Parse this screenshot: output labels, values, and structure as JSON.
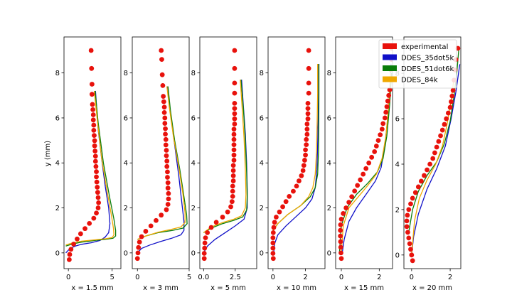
{
  "figure": {
    "ylabel": "y (mm)"
  },
  "legend": {
    "entries": [
      {
        "label": "experimental",
        "color": "#e8120c"
      },
      {
        "label": "DDES_35dot5k",
        "color": "#1010c8"
      },
      {
        "label": "DDES_51dot6k",
        "color": "#0a7d0a"
      },
      {
        "label": "DDES_84k",
        "color": "#f0a800"
      }
    ]
  },
  "chart_data": [
    {
      "type": "line",
      "xlabel": "x = 1.5 mm",
      "ylabel": "y (mm)",
      "xlim": [
        -0.5,
        6
      ],
      "ylim": [
        -0.7,
        9.6
      ],
      "xticks": [
        0,
        5
      ],
      "yticks": [
        0,
        2,
        4,
        6,
        8
      ],
      "experimental": {
        "x": [
          0.1,
          0.15,
          0.3,
          0.6,
          1.0,
          1.4,
          1.9,
          2.4,
          2.9,
          3.2,
          3.4,
          3.45,
          3.4,
          3.35,
          3.3,
          3.25,
          3.2,
          3.2,
          3.15,
          3.1,
          3.1,
          3.05,
          3.0,
          3.0,
          2.95,
          2.9,
          2.9,
          2.85,
          2.85,
          2.8,
          2.75,
          2.7,
          2.7,
          2.65,
          2.6
        ],
        "y": [
          -0.3,
          -0.07,
          0.16,
          0.39,
          0.62,
          0.85,
          1.08,
          1.31,
          1.54,
          1.77,
          2.0,
          2.23,
          2.46,
          2.69,
          2.92,
          3.15,
          3.38,
          3.61,
          3.84,
          4.07,
          4.3,
          4.53,
          4.76,
          4.99,
          5.22,
          5.45,
          5.68,
          5.91,
          6.14,
          6.37,
          6.6,
          7.05,
          7.5,
          8.2,
          9.0
        ]
      },
      "series": [
        {
          "name": "DDES_35dot5k",
          "x": [
            -0.3,
            0.2,
            0.8,
            1.5,
            2.6,
            3.6,
            4.2,
            4.6,
            4.75,
            4.6,
            4.2,
            3.8,
            3.4,
            3.1
          ],
          "y": [
            0.0,
            0.2,
            0.3,
            0.38,
            0.45,
            0.55,
            0.7,
            0.9,
            1.3,
            2.0,
            3.0,
            4.2,
            5.5,
            7.2
          ]
        },
        {
          "name": "DDES_51dot6k",
          "x": [
            -0.3,
            0.5,
            1.5,
            3.0,
            4.2,
            5.1,
            5.4,
            5.4,
            5.2,
            4.7,
            4.0,
            3.4,
            3.05
          ],
          "y": [
            0.3,
            0.4,
            0.48,
            0.55,
            0.6,
            0.65,
            0.75,
            1.0,
            1.5,
            2.5,
            4.0,
            5.8,
            7.2
          ]
        },
        {
          "name": "DDES_84k",
          "x": [
            -0.3,
            0.5,
            1.5,
            3.0,
            4.3,
            5.0,
            5.2,
            5.15,
            4.9,
            4.4,
            3.8,
            3.3,
            2.95
          ],
          "y": [
            0.35,
            0.45,
            0.52,
            0.58,
            0.63,
            0.68,
            0.8,
            1.1,
            1.7,
            2.8,
            4.2,
            5.9,
            7.2
          ]
        }
      ]
    },
    {
      "type": "line",
      "xlabel": "x = 3 mm",
      "ylabel": "",
      "xlim": [
        -0.5,
        5
      ],
      "ylim": [
        -0.7,
        9.6
      ],
      "xticks": [
        0,
        5
      ],
      "yticks": [
        0,
        2,
        4,
        6,
        8
      ],
      "experimental": {
        "x": [
          0.0,
          0.05,
          0.1,
          0.2,
          0.4,
          0.8,
          1.3,
          1.8,
          2.3,
          2.8,
          2.95,
          3.0,
          3.0,
          2.95,
          2.95,
          2.9,
          2.9,
          2.85,
          2.85,
          2.8,
          2.8,
          2.75,
          2.75,
          2.7,
          2.7,
          2.65,
          2.65,
          2.6,
          2.6,
          2.55,
          2.5,
          2.45,
          2.4,
          2.35,
          2.3
        ],
        "y": [
          -0.25,
          0.0,
          0.24,
          0.48,
          0.72,
          0.96,
          1.2,
          1.44,
          1.68,
          1.92,
          2.16,
          2.4,
          2.64,
          2.88,
          3.12,
          3.36,
          3.6,
          3.84,
          4.08,
          4.32,
          4.56,
          4.8,
          5.04,
          5.28,
          5.52,
          5.76,
          6.0,
          6.24,
          6.48,
          6.72,
          6.96,
          7.44,
          7.92,
          8.6,
          9.0
        ]
      },
      "series": [
        {
          "name": "DDES_35dot5k",
          "x": [
            0.0,
            0.4,
            1.2,
            2.2,
            3.3,
            4.2,
            4.5,
            4.5,
            4.3,
            4.0,
            3.6,
            3.2,
            2.9
          ],
          "y": [
            0.0,
            0.2,
            0.35,
            0.5,
            0.65,
            0.8,
            1.0,
            1.4,
            2.2,
            3.4,
            4.8,
            6.2,
            7.4
          ]
        },
        {
          "name": "DDES_51dot6k",
          "x": [
            0.0,
            0.8,
            2.0,
            3.4,
            4.4,
            4.8,
            4.75,
            4.5,
            4.1,
            3.6,
            3.2,
            2.95
          ],
          "y": [
            0.6,
            0.75,
            0.9,
            1.0,
            1.1,
            1.3,
            1.7,
            2.5,
            3.7,
            5.0,
            6.3,
            7.4
          ]
        },
        {
          "name": "DDES_84k",
          "x": [
            0.0,
            0.8,
            2.0,
            3.3,
            4.2,
            4.6,
            4.6,
            4.4,
            4.0,
            3.5,
            3.1,
            2.85
          ],
          "y": [
            0.6,
            0.75,
            0.92,
            1.05,
            1.15,
            1.35,
            1.8,
            2.6,
            3.8,
            5.1,
            6.4,
            7.4
          ]
        }
      ]
    },
    {
      "type": "line",
      "xlabel": "x = 5 mm",
      "ylabel": "",
      "xlim": [
        -0.3,
        4.2
      ],
      "ylim": [
        -0.7,
        9.6
      ],
      "xticks": [
        0,
        2.5
      ],
      "xtick_labels": [
        "0.0",
        "2.5"
      ],
      "yticks": [
        0,
        2,
        4,
        6,
        8
      ],
      "experimental": {
        "x": [
          0.05,
          0.05,
          0.08,
          0.1,
          0.15,
          0.3,
          0.6,
          1.0,
          1.5,
          1.9,
          2.15,
          2.25,
          2.3,
          2.3,
          2.3,
          2.35,
          2.35,
          2.35,
          2.35,
          2.4,
          2.4,
          2.4,
          2.4,
          2.4,
          2.4,
          2.4,
          2.45,
          2.45,
          2.45,
          2.45,
          2.45,
          2.45,
          2.45,
          2.45,
          2.45
        ],
        "y": [
          -0.25,
          -0.02,
          0.21,
          0.44,
          0.67,
          0.9,
          1.13,
          1.36,
          1.59,
          1.82,
          2.05,
          2.28,
          2.51,
          2.74,
          2.97,
          3.2,
          3.43,
          3.66,
          3.89,
          4.12,
          4.35,
          4.58,
          4.81,
          5.04,
          5.27,
          5.5,
          5.73,
          5.96,
          6.19,
          6.42,
          6.65,
          7.1,
          7.55,
          8.2,
          9.0
        ]
      },
      "series": [
        {
          "name": "DDES_35dot5k",
          "x": [
            0.0,
            0.3,
            0.9,
            1.7,
            2.5,
            3.2,
            3.45,
            3.45,
            3.4,
            3.3,
            3.15,
            3.0
          ],
          "y": [
            0.0,
            0.3,
            0.6,
            0.9,
            1.2,
            1.5,
            2.0,
            2.8,
            4.0,
            5.3,
            6.5,
            7.7
          ]
        },
        {
          "name": "DDES_51dot6k",
          "x": [
            0.0,
            0.6,
            1.5,
            2.4,
            3.1,
            3.4,
            3.45,
            3.4,
            3.3,
            3.15,
            2.95
          ],
          "y": [
            0.9,
            1.1,
            1.3,
            1.45,
            1.6,
            1.9,
            2.5,
            3.6,
            5.0,
            6.4,
            7.7
          ]
        },
        {
          "name": "DDES_84k",
          "x": [
            0.0,
            0.6,
            1.5,
            2.4,
            3.0,
            3.3,
            3.35,
            3.3,
            3.2,
            3.05,
            2.9
          ],
          "y": [
            0.9,
            1.15,
            1.35,
            1.5,
            1.65,
            2.0,
            2.6,
            3.7,
            5.1,
            6.4,
            7.7
          ]
        }
      ]
    },
    {
      "type": "line",
      "xlabel": "x = 10 mm",
      "ylabel": "",
      "xlim": [
        -0.3,
        3.2
      ],
      "ylim": [
        -0.7,
        9.6
      ],
      "xticks": [
        0,
        2
      ],
      "yticks": [
        0,
        2,
        4,
        6,
        8
      ],
      "experimental": {
        "x": [
          0.02,
          0.0,
          0.0,
          0.0,
          0.0,
          0.02,
          0.05,
          0.1,
          0.2,
          0.4,
          0.6,
          0.8,
          1.0,
          1.25,
          1.45,
          1.6,
          1.75,
          1.85,
          1.9,
          1.95,
          2.0,
          2.0,
          2.05,
          2.05,
          2.1,
          2.1,
          2.1,
          2.15,
          2.15,
          2.15,
          2.15,
          2.2,
          2.2,
          2.2,
          2.2
        ],
        "y": [
          -0.25,
          -0.02,
          0.21,
          0.44,
          0.67,
          0.9,
          1.13,
          1.36,
          1.59,
          1.82,
          2.05,
          2.28,
          2.51,
          2.74,
          2.97,
          3.2,
          3.43,
          3.66,
          3.89,
          4.12,
          4.35,
          4.58,
          4.81,
          5.04,
          5.27,
          5.5,
          5.73,
          5.96,
          6.19,
          6.42,
          6.65,
          7.1,
          7.55,
          8.2,
          9.0
        ]
      },
      "series": [
        {
          "name": "DDES_35dot5k",
          "x": [
            0.05,
            0.1,
            0.3,
            0.8,
            1.4,
            2.0,
            2.4,
            2.6,
            2.7,
            2.75,
            2.78,
            2.8,
            2.8
          ],
          "y": [
            0.0,
            0.4,
            0.8,
            1.2,
            1.6,
            2.0,
            2.4,
            2.9,
            3.7,
            4.8,
            6.0,
            7.2,
            8.4
          ]
        },
        {
          "name": "DDES_51dot6k",
          "x": [
            0.0,
            0.3,
            0.9,
            1.7,
            2.3,
            2.6,
            2.75,
            2.8,
            2.82,
            2.83,
            2.83
          ],
          "y": [
            1.0,
            1.3,
            1.7,
            2.1,
            2.5,
            2.9,
            3.5,
            4.5,
            5.8,
            7.1,
            8.4
          ]
        },
        {
          "name": "DDES_84k",
          "x": [
            0.0,
            0.3,
            0.9,
            1.7,
            2.2,
            2.45,
            2.6,
            2.68,
            2.72,
            2.75,
            2.75
          ],
          "y": [
            1.0,
            1.3,
            1.7,
            2.1,
            2.5,
            2.9,
            3.5,
            4.5,
            5.8,
            7.1,
            8.4
          ]
        }
      ]
    },
    {
      "type": "line",
      "xlabel": "x = 15 mm",
      "ylabel": "",
      "xlim": [
        -0.3,
        2.7
      ],
      "ylim": [
        -0.7,
        9.6
      ],
      "xticks": [
        0,
        2
      ],
      "yticks": [
        0,
        2,
        4,
        6,
        8
      ],
      "experimental": {
        "x": [
          0.0,
          -0.02,
          -0.03,
          -0.04,
          -0.05,
          -0.05,
          -0.04,
          0.0,
          0.1,
          0.25,
          0.4,
          0.55,
          0.7,
          0.85,
          1.0,
          1.15,
          1.3,
          1.45,
          1.6,
          1.75,
          1.85,
          1.95,
          2.05,
          2.15,
          2.2,
          2.3,
          2.35,
          2.4,
          2.45,
          2.5,
          2.55,
          2.6,
          2.6,
          2.65,
          2.65
        ],
        "y": [
          -0.25,
          0.0,
          0.25,
          0.5,
          0.75,
          1.0,
          1.25,
          1.5,
          1.75,
          2.0,
          2.25,
          2.5,
          2.75,
          3.0,
          3.25,
          3.5,
          3.75,
          4.0,
          4.25,
          4.5,
          4.75,
          5.0,
          5.25,
          5.5,
          5.75,
          6.0,
          6.25,
          6.5,
          6.75,
          7.0,
          7.25,
          7.7,
          8.15,
          8.6,
          9.1
        ]
      },
      "series": [
        {
          "name": "DDES_35dot5k",
          "x": [
            0.05,
            0.15,
            0.4,
            0.8,
            1.3,
            1.8,
            2.1,
            2.3,
            2.45,
            2.55,
            2.62
          ],
          "y": [
            0.0,
            0.6,
            1.4,
            2.0,
            2.6,
            3.2,
            3.8,
            4.8,
            6.0,
            7.2,
            8.4
          ]
        },
        {
          "name": "DDES_51dot6k",
          "x": [
            -0.1,
            0.0,
            0.3,
            0.8,
            1.4,
            1.9,
            2.2,
            2.4,
            2.55,
            2.65
          ],
          "y": [
            0.0,
            1.2,
            2.0,
            2.6,
            3.1,
            3.6,
            4.2,
            5.2,
            6.6,
            8.0
          ]
        },
        {
          "name": "DDES_84k",
          "x": [
            0.0,
            0.1,
            0.4,
            0.9,
            1.4,
            1.85,
            2.15,
            2.35,
            2.5,
            2.6
          ],
          "y": [
            0.0,
            1.2,
            2.0,
            2.5,
            3.0,
            3.5,
            4.2,
            5.2,
            6.6,
            8.0
          ]
        }
      ]
    },
    {
      "type": "line",
      "xlabel": "x = 20 mm",
      "ylabel": "",
      "xlim": [
        -0.4,
        2.55
      ],
      "ylim": [
        -0.6,
        9.6
      ],
      "xticks": [
        0,
        2
      ],
      "yticks": [
        0,
        2,
        4,
        6,
        8
      ],
      "experimental": {
        "x": [
          0.05,
          0.0,
          -0.05,
          -0.1,
          -0.15,
          -0.2,
          -0.25,
          -0.25,
          -0.22,
          -0.15,
          -0.05,
          0.05,
          0.2,
          0.35,
          0.5,
          0.65,
          0.8,
          0.95,
          1.1,
          1.2,
          1.3,
          1.4,
          1.5,
          1.6,
          1.7,
          1.8,
          1.9,
          2.0,
          2.05,
          2.1,
          2.15,
          2.2,
          2.25,
          2.3,
          2.4
        ],
        "y": [
          -0.25,
          0.0,
          0.25,
          0.5,
          0.75,
          1.0,
          1.25,
          1.5,
          1.75,
          2.0,
          2.25,
          2.5,
          2.75,
          3.0,
          3.25,
          3.5,
          3.75,
          4.0,
          4.25,
          4.5,
          4.75,
          5.0,
          5.25,
          5.5,
          5.75,
          6.0,
          6.25,
          6.5,
          6.75,
          7.0,
          7.25,
          7.7,
          8.15,
          8.6,
          9.1
        ]
      },
      "series": [
        {
          "name": "DDES_35dot5k",
          "x": [
            0.0,
            0.1,
            0.35,
            0.8,
            1.3,
            1.75,
            2.05,
            2.3,
            2.5
          ],
          "y": [
            0.0,
            0.8,
            1.8,
            2.9,
            3.8,
            4.8,
            6.0,
            7.2,
            8.4
          ]
        },
        {
          "name": "DDES_51dot6k",
          "x": [
            -0.15,
            0.05,
            0.35,
            0.8,
            1.3,
            1.7,
            2.0,
            2.2,
            2.35,
            2.45
          ],
          "y": [
            1.0,
            2.0,
            2.8,
            3.5,
            4.1,
            4.9,
            5.9,
            7.0,
            8.1,
            9.1
          ]
        },
        {
          "name": "DDES_84k",
          "x": [
            0.0,
            0.15,
            0.4,
            0.8,
            1.25,
            1.6,
            1.85,
            2.05,
            2.2
          ],
          "y": [
            0.0,
            1.5,
            2.5,
            3.3,
            4.0,
            4.8,
            5.8,
            6.8,
            7.8
          ]
        }
      ]
    }
  ]
}
